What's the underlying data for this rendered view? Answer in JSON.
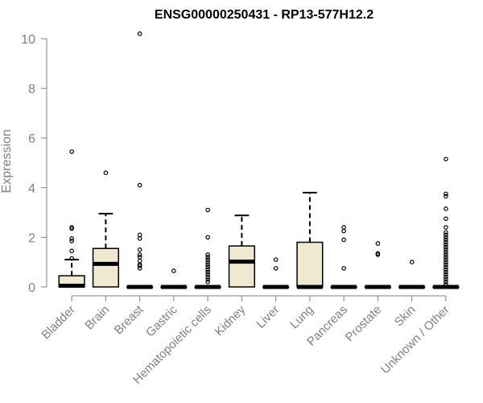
{
  "chart_data": {
    "type": "box",
    "title": "ENSG00000250431 - RP13-577H12.2",
    "xlabel": "",
    "ylabel": "Expression",
    "ylim": [
      0,
      10.3
    ],
    "yticks": [
      0,
      2,
      4,
      6,
      8,
      10
    ],
    "box_fill": "#efe9d2",
    "box_stroke": "#000000",
    "categories": [
      "Bladder",
      "Brain",
      "Breast",
      "Gastric",
      "Hematopoietic cells",
      "Kidney",
      "Liver",
      "Lung",
      "Pancreas",
      "Prostate",
      "Skin",
      "Unknown / Other"
    ],
    "series": [
      {
        "category": "Bladder",
        "q1": 0,
        "median": 0.05,
        "q3": 0.45,
        "whisker_low": 0,
        "whisker_high": 1.1,
        "outliers": [
          5.45,
          2.4,
          2.35,
          1.95,
          1.85,
          1.45,
          1.15
        ]
      },
      {
        "category": "Brain",
        "q1": 0,
        "median": 0.93,
        "q3": 1.55,
        "whisker_low": 0,
        "whisker_high": 2.95,
        "outliers": [
          4.6
        ]
      },
      {
        "category": "Breast",
        "q1": 0,
        "median": 0,
        "q3": 0,
        "whisker_low": 0,
        "whisker_high": 0,
        "outliers": [
          10.2,
          4.1,
          2.1,
          1.95,
          1.5,
          1.3,
          1.2,
          1.05,
          0.9,
          0.85,
          0.75
        ]
      },
      {
        "category": "Gastric",
        "q1": 0,
        "median": 0,
        "q3": 0,
        "whisker_low": 0,
        "whisker_high": 0,
        "outliers": [
          0.65
        ]
      },
      {
        "category": "Hematopoietic cells",
        "q1": 0,
        "median": 0,
        "q3": 0,
        "whisker_low": 0,
        "whisker_high": 0,
        "outliers": [
          3.1,
          2.0,
          1.3,
          1.2,
          1.1,
          1.0,
          0.9,
          0.8,
          0.7,
          0.6,
          0.5,
          0.4,
          0.3,
          0.2
        ]
      },
      {
        "category": "Kidney",
        "q1": 0,
        "median": 1.02,
        "q3": 1.65,
        "whisker_low": 0,
        "whisker_high": 2.88,
        "outliers": []
      },
      {
        "category": "Liver",
        "q1": 0,
        "median": 0,
        "q3": 0,
        "whisker_low": 0,
        "whisker_high": 0,
        "outliers": [
          1.1,
          0.75
        ]
      },
      {
        "category": "Lung",
        "q1": 0,
        "median": 0,
        "q3": 1.8,
        "whisker_low": 0,
        "whisker_high": 3.8,
        "outliers": []
      },
      {
        "category": "Pancreas",
        "q1": 0,
        "median": 0,
        "q3": 0,
        "whisker_low": 0,
        "whisker_high": 0,
        "outliers": [
          2.4,
          2.25,
          1.9,
          0.75
        ]
      },
      {
        "category": "Prostate",
        "q1": 0,
        "median": 0,
        "q3": 0,
        "whisker_low": 0,
        "whisker_high": 0,
        "outliers": [
          1.75,
          1.35,
          1.3
        ]
      },
      {
        "category": "Skin",
        "q1": 0,
        "median": 0,
        "q3": 0,
        "whisker_low": 0,
        "whisker_high": 0,
        "outliers": [
          1.0
        ]
      },
      {
        "category": "Unknown / Other",
        "q1": 0,
        "median": 0,
        "q3": 0,
        "whisker_low": 0,
        "whisker_high": 0,
        "outliers": [
          5.15,
          3.75,
          3.65,
          3.15,
          2.75,
          2.4,
          2.2,
          2.1,
          2.0,
          1.9,
          1.8,
          1.7,
          1.6,
          1.5,
          1.4,
          1.3,
          1.2,
          1.1,
          1.0,
          0.9,
          0.8,
          0.7,
          0.6,
          0.5,
          0.4,
          0.3,
          0.2,
          0.1
        ]
      }
    ]
  }
}
